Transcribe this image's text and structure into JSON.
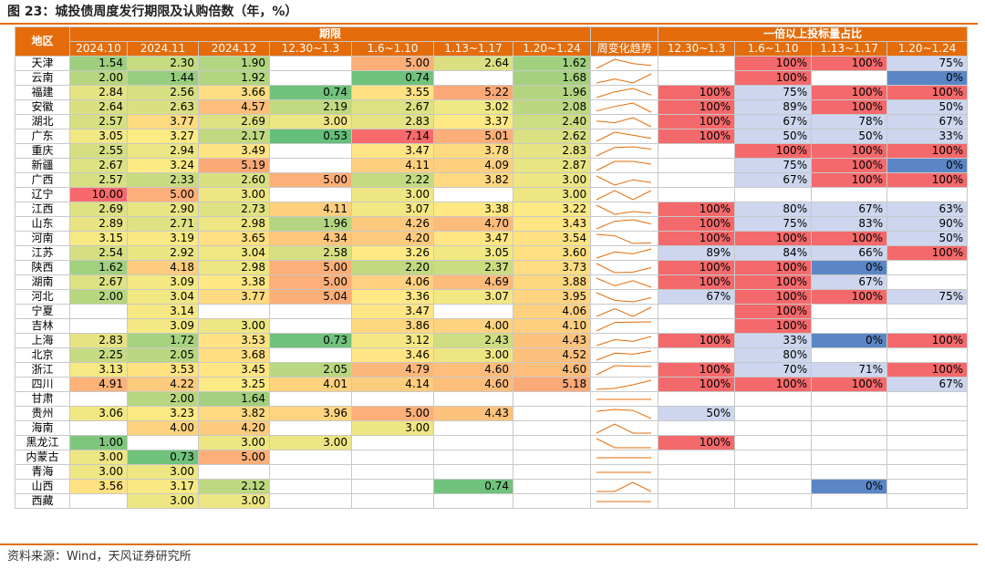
{
  "title": "图 23：城投债周度发行期限及认购倍数（年，%）",
  "source": "资料来源：Wind，天风证券研究所",
  "header": {
    "region": "地区",
    "group_term": "期限",
    "group_ratio": "一倍以上投标量占比",
    "term_cols": [
      "2024.10",
      "2024.11",
      "2024.12",
      "12.30~1.3",
      "1.6~1.10",
      "1.13~1.17",
      "1.20~1.24"
    ],
    "trend_col": "周变化趋势",
    "ratio_cols": [
      "12.30~1.3",
      "1.6~1.10",
      "1.13~1.17",
      "1.20~1.24"
    ]
  },
  "colors": {
    "accent": "#e46c0a",
    "high_ratio": "#f4696b",
    "mid_ratio": "#cdd6ee",
    "low_ratio": "#5b86c5",
    "term_scale": [
      "#63be7b",
      "#ffeb84",
      "#f8696b"
    ],
    "sparkline": "#e46c0a"
  },
  "chart_data": {
    "type": "table",
    "rows": [
      {
        "region": "天津",
        "terms": [
          "1.54",
          "2.30",
          "1.90",
          "",
          "5.00",
          "2.64",
          "1.62"
        ],
        "ratios": [
          "",
          "100%",
          "100%",
          "75%"
        ]
      },
      {
        "region": "云南",
        "terms": [
          "2.00",
          "1.44",
          "1.92",
          "",
          "0.74",
          "",
          "1.68"
        ],
        "ratios": [
          "",
          "100%",
          "",
          "0%"
        ]
      },
      {
        "region": "福建",
        "terms": [
          "2.84",
          "2.56",
          "3.66",
          "0.74",
          "3.55",
          "5.22",
          "1.96"
        ],
        "ratios": [
          "100%",
          "75%",
          "100%",
          "100%"
        ]
      },
      {
        "region": "安徽",
        "terms": [
          "2.64",
          "2.63",
          "4.57",
          "2.19",
          "2.67",
          "3.02",
          "2.08"
        ],
        "ratios": [
          "100%",
          "89%",
          "100%",
          "50%"
        ]
      },
      {
        "region": "湖北",
        "terms": [
          "2.57",
          "3.77",
          "2.69",
          "3.00",
          "2.83",
          "3.37",
          "2.40"
        ],
        "ratios": [
          "100%",
          "67%",
          "78%",
          "67%"
        ]
      },
      {
        "region": "广东",
        "terms": [
          "3.05",
          "3.27",
          "2.17",
          "0.53",
          "7.14",
          "5.01",
          "2.62"
        ],
        "ratios": [
          "100%",
          "50%",
          "50%",
          "33%"
        ]
      },
      {
        "region": "重庆",
        "terms": [
          "2.55",
          "2.94",
          "3.49",
          "",
          "3.47",
          "3.78",
          "2.83"
        ],
        "ratios": [
          "",
          "100%",
          "100%",
          "100%"
        ]
      },
      {
        "region": "新疆",
        "terms": [
          "2.67",
          "3.24",
          "5.19",
          "",
          "4.11",
          "4.09",
          "2.87"
        ],
        "ratios": [
          "",
          "75%",
          "100%",
          "0%"
        ]
      },
      {
        "region": "广西",
        "terms": [
          "2.57",
          "2.33",
          "2.60",
          "5.00",
          "2.22",
          "3.82",
          "3.00"
        ],
        "ratios": [
          "",
          "67%",
          "100%",
          "100%"
        ]
      },
      {
        "region": "辽宁",
        "terms": [
          "10.00",
          "5.00",
          "3.00",
          "",
          "3.00",
          "",
          "3.00"
        ],
        "ratios": [
          "",
          "",
          "",
          ""
        ]
      },
      {
        "region": "江西",
        "terms": [
          "2.69",
          "2.90",
          "2.73",
          "4.11",
          "3.07",
          "3.38",
          "3.22"
        ],
        "ratios": [
          "100%",
          "80%",
          "67%",
          "63%"
        ]
      },
      {
        "region": "山东",
        "terms": [
          "2.89",
          "2.71",
          "2.98",
          "1.96",
          "4.26",
          "4.70",
          "3.43"
        ],
        "ratios": [
          "100%",
          "75%",
          "83%",
          "90%"
        ]
      },
      {
        "region": "河南",
        "terms": [
          "3.15",
          "3.19",
          "3.65",
          "4.34",
          "4.20",
          "3.47",
          "3.54"
        ],
        "ratios": [
          "100%",
          "100%",
          "100%",
          "50%"
        ]
      },
      {
        "region": "江苏",
        "terms": [
          "2.54",
          "2.92",
          "3.04",
          "2.58",
          "3.26",
          "3.05",
          "3.60"
        ],
        "ratios": [
          "89%",
          "84%",
          "66%",
          "100%"
        ]
      },
      {
        "region": "陕西",
        "terms": [
          "1.62",
          "4.18",
          "2.98",
          "5.00",
          "2.20",
          "2.37",
          "3.73"
        ],
        "ratios": [
          "100%",
          "100%",
          "0%",
          ""
        ]
      },
      {
        "region": "湖南",
        "terms": [
          "2.67",
          "3.09",
          "3.38",
          "5.00",
          "4.06",
          "4.69",
          "3.88"
        ],
        "ratios": [
          "100%",
          "100%",
          "67%",
          ""
        ]
      },
      {
        "region": "河北",
        "terms": [
          "2.00",
          "3.04",
          "3.77",
          "5.04",
          "3.36",
          "3.07",
          "3.95"
        ],
        "ratios": [
          "67%",
          "100%",
          "100%",
          "75%"
        ]
      },
      {
        "region": "宁夏",
        "terms": [
          "",
          "3.14",
          "",
          "",
          "3.47",
          "",
          "4.06"
        ],
        "ratios": [
          "",
          "100%",
          "",
          ""
        ]
      },
      {
        "region": "吉林",
        "terms": [
          "",
          "3.09",
          "3.00",
          "",
          "3.86",
          "4.00",
          "4.10"
        ],
        "ratios": [
          "",
          "100%",
          "",
          ""
        ]
      },
      {
        "region": "上海",
        "terms": [
          "2.83",
          "1.72",
          "3.53",
          "0.73",
          "3.12",
          "2.43",
          "4.43"
        ],
        "ratios": [
          "100%",
          "33%",
          "0%",
          "100%"
        ]
      },
      {
        "region": "北京",
        "terms": [
          "2.25",
          "2.05",
          "3.68",
          "",
          "3.46",
          "3.00",
          "4.52"
        ],
        "ratios": [
          "",
          "80%",
          "",
          ""
        ]
      },
      {
        "region": "浙江",
        "terms": [
          "3.13",
          "3.53",
          "3.45",
          "2.05",
          "4.79",
          "4.60",
          "4.60"
        ],
        "ratios": [
          "100%",
          "70%",
          "71%",
          "100%"
        ]
      },
      {
        "region": "四川",
        "terms": [
          "4.91",
          "4.22",
          "3.25",
          "4.01",
          "4.14",
          "4.60",
          "5.18"
        ],
        "ratios": [
          "100%",
          "100%",
          "100%",
          "67%"
        ]
      },
      {
        "region": "甘肃",
        "terms": [
          "",
          "2.00",
          "1.64",
          "",
          "",
          "",
          ""
        ],
        "ratios": [
          "",
          "",
          "",
          ""
        ]
      },
      {
        "region": "贵州",
        "terms": [
          "3.06",
          "3.23",
          "3.82",
          "3.96",
          "5.00",
          "4.43",
          ""
        ],
        "ratios": [
          "50%",
          "",
          "",
          ""
        ]
      },
      {
        "region": "海南",
        "terms": [
          "",
          "4.00",
          "4.20",
          "",
          "3.00",
          "",
          ""
        ],
        "ratios": [
          "",
          "",
          "",
          ""
        ]
      },
      {
        "region": "黑龙江",
        "terms": [
          "1.00",
          "",
          "3.00",
          "3.00",
          "",
          "",
          ""
        ],
        "ratios": [
          "100%",
          "",
          "",
          ""
        ]
      },
      {
        "region": "内蒙古",
        "terms": [
          "3.00",
          "0.73",
          "5.00",
          "",
          "",
          "",
          ""
        ],
        "ratios": [
          "",
          "",
          "",
          ""
        ]
      },
      {
        "region": "青海",
        "terms": [
          "3.00",
          "3.00",
          "",
          "",
          "",
          "",
          ""
        ],
        "ratios": [
          "",
          "",
          "",
          ""
        ]
      },
      {
        "region": "山西",
        "terms": [
          "3.56",
          "3.17",
          "2.12",
          "",
          "",
          "0.74",
          ""
        ],
        "ratios": [
          "",
          "",
          "0%",
          ""
        ]
      },
      {
        "region": "西藏",
        "terms": [
          "",
          "3.00",
          "3.00",
          "",
          "",
          "",
          ""
        ],
        "ratios": [
          "",
          "",
          "",
          ""
        ]
      }
    ]
  }
}
